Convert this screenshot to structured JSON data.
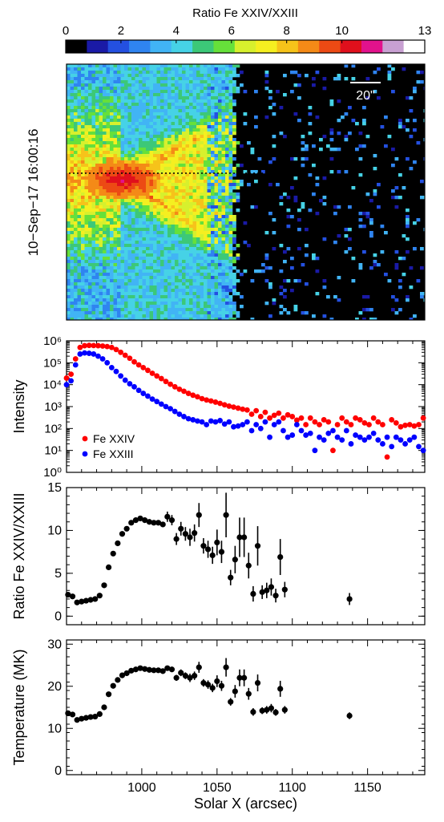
{
  "colorbar": {
    "title": "Ratio Fe XXIV/XXIII",
    "ticks": [
      "0",
      "2",
      "4",
      "6",
      "8",
      "10",
      "13"
    ],
    "tick_values": [
      0,
      2,
      4,
      6,
      8,
      10,
      13
    ],
    "range": [
      0,
      13
    ],
    "colors": [
      "#000000",
      "#1a1aa6",
      "#2450e0",
      "#2f84f0",
      "#41b4f5",
      "#46d2e6",
      "#3cc878",
      "#66e03a",
      "#d7f02d",
      "#f5ef20",
      "#f6c31a",
      "#f48a17",
      "#ec4a14",
      "#e0101c",
      "#e2128c",
      "#c8a0d2",
      "#ffffff"
    ]
  },
  "map": {
    "timestamp": "10−Sep−17 16:00:16",
    "scale_bar_label": "20\"",
    "colors": {
      "bg": "#000000",
      "line": "#000000"
    }
  },
  "chart_data": [
    {
      "type": "scatter",
      "ylabel": "Intensity",
      "yscale": "log",
      "ylim": [
        1,
        1000000
      ],
      "xlim": [
        950,
        1188
      ],
      "ytick_labels": [
        "10⁰",
        "10¹",
        "10²",
        "10³",
        "10⁴",
        "10⁵",
        "10⁶"
      ],
      "legend_position": "bottom-left",
      "series": [
        {
          "name": "Fe XXIV",
          "color": "#ff0000",
          "x": [
            950,
            953,
            956,
            959,
            962,
            965,
            968,
            971,
            974,
            977,
            980,
            983,
            986,
            989,
            992,
            995,
            998,
            1001,
            1004,
            1007,
            1010,
            1013,
            1016,
            1019,
            1022,
            1025,
            1028,
            1031,
            1034,
            1037,
            1040,
            1043,
            1046,
            1049,
            1052,
            1055,
            1058,
            1061,
            1064,
            1067,
            1070,
            1073,
            1076,
            1079,
            1082,
            1085,
            1088,
            1091,
            1094,
            1097,
            1100,
            1103,
            1106,
            1109,
            1112,
            1115,
            1118,
            1121,
            1124,
            1127,
            1130,
            1133,
            1136,
            1139,
            1142,
            1145,
            1148,
            1151,
            1154,
            1157,
            1160,
            1163,
            1166,
            1169,
            1172,
            1175,
            1178,
            1181,
            1184,
            1187
          ],
          "y": [
            20000,
            30000,
            150000,
            500000,
            600000,
            620000,
            610000,
            600000,
            580000,
            550000,
            500000,
            400000,
            300000,
            220000,
            160000,
            110000,
            80000,
            60000,
            45000,
            33000,
            25000,
            19000,
            14000,
            10500,
            8000,
            6200,
            5000,
            4000,
            3300,
            2800,
            2300,
            2000,
            1800,
            1600,
            1400,
            1200,
            1050,
            950,
            850,
            760,
            700,
            450,
            650,
            350,
            550,
            300,
            400,
            500,
            300,
            420,
            350,
            240,
            300,
            150,
            300,
            200,
            150,
            250,
            200,
            10,
            150,
            300,
            200,
            150,
            300,
            250,
            180,
            150,
            300,
            200,
            150,
            5,
            250,
            180,
            120,
            140,
            150,
            130,
            150,
            300
          ]
        },
        {
          "name": "Fe XXIII",
          "color": "#0000ff",
          "x": [
            950,
            953,
            956,
            959,
            962,
            965,
            968,
            971,
            974,
            977,
            980,
            983,
            986,
            989,
            992,
            995,
            998,
            1001,
            1004,
            1007,
            1010,
            1013,
            1016,
            1019,
            1022,
            1025,
            1028,
            1031,
            1034,
            1037,
            1040,
            1043,
            1046,
            1049,
            1052,
            1055,
            1058,
            1061,
            1064,
            1067,
            1070,
            1073,
            1076,
            1079,
            1082,
            1085,
            1088,
            1091,
            1094,
            1097,
            1100,
            1103,
            1106,
            1109,
            1112,
            1115,
            1118,
            1121,
            1124,
            1127,
            1130,
            1133,
            1136,
            1139,
            1142,
            1145,
            1148,
            1151,
            1154,
            1157,
            1160,
            1163,
            1166,
            1169,
            1172,
            1175,
            1178,
            1181,
            1184,
            1187
          ],
          "y": [
            10000,
            15000,
            80000,
            250000,
            280000,
            270000,
            250000,
            200000,
            150000,
            100000,
            60000,
            40000,
            25000,
            16000,
            11000,
            8000,
            5500,
            4000,
            3000,
            2200,
            1700,
            1300,
            1000,
            800,
            600,
            450,
            350,
            280,
            250,
            220,
            200,
            150,
            220,
            200,
            230,
            160,
            200,
            120,
            130,
            150,
            200,
            80,
            150,
            100,
            200,
            40,
            150,
            200,
            80,
            40,
            50,
            150,
            80,
            50,
            60,
            10,
            40,
            30,
            60,
            80,
            40,
            30,
            80,
            20,
            50,
            40,
            30,
            40,
            60,
            30,
            20,
            40,
            15,
            40,
            30,
            20,
            30,
            40,
            15,
            10
          ]
        }
      ]
    },
    {
      "type": "scatter",
      "ylabel": "Ratio Fe XXIV/XXIII",
      "ylim": [
        -1,
        15
      ],
      "xlim": [
        950,
        1188
      ],
      "ytick_values": [
        0,
        5,
        10,
        15
      ],
      "series": [
        {
          "name": "",
          "color": "#000000",
          "x": [
            951,
            954,
            957,
            960,
            963,
            966,
            969,
            972,
            975,
            978,
            981,
            984,
            987,
            990,
            993,
            996,
            999,
            1002,
            1005,
            1008,
            1011,
            1014,
            1017,
            1020,
            1023,
            1026,
            1029,
            1032,
            1035,
            1038,
            1041,
            1044,
            1047,
            1050,
            1053,
            1056,
            1059,
            1062,
            1065,
            1068,
            1071,
            1074,
            1077,
            1080,
            1083,
            1086,
            1089,
            1092,
            1095,
            1138
          ],
          "y": [
            2.5,
            2.3,
            1.6,
            1.7,
            1.8,
            1.9,
            2.0,
            2.4,
            3.6,
            5.7,
            7.3,
            8.5,
            9.6,
            10.2,
            10.9,
            11.2,
            11.4,
            11.2,
            11.0,
            10.9,
            10.9,
            10.7,
            11.6,
            11.2,
            9.0,
            10.2,
            9.6,
            9.2,
            9.7,
            11.8,
            8.2,
            7.8,
            7.1,
            8.6,
            7.5,
            11.8,
            4.5,
            6.6,
            9.2,
            9.2,
            5.9,
            2.6,
            8.2,
            2.8,
            3.0,
            3.4,
            2.4,
            6.9,
            3.1,
            2.0
          ],
          "err": [
            0.2,
            0.2,
            0.2,
            0.2,
            0.2,
            0.2,
            0.2,
            0.2,
            0.2,
            0.2,
            0.2,
            0.2,
            0.2,
            0.2,
            0.2,
            0.2,
            0.2,
            0.3,
            0.3,
            0.3,
            0.3,
            0.3,
            0.6,
            0.6,
            0.7,
            0.8,
            0.8,
            1.0,
            1.0,
            1.4,
            0.9,
            1.0,
            1.0,
            1.5,
            1.3,
            2.6,
            0.9,
            1.6,
            2.3,
            2.3,
            1.5,
            0.9,
            2.3,
            0.8,
            0.9,
            1.0,
            0.8,
            2.1,
            0.9,
            0.7
          ]
        }
      ]
    },
    {
      "type": "scatter",
      "ylabel": "Temperature (MK)",
      "xlabel": "Solar X (arcsec)",
      "ylim": [
        -1,
        31
      ],
      "xlim": [
        950,
        1188
      ],
      "ytick_values": [
        0,
        10,
        20,
        30
      ],
      "xtick_values": [
        1000,
        1050,
        1100,
        1150
      ],
      "series": [
        {
          "name": "",
          "color": "#000000",
          "x": [
            951,
            954,
            957,
            960,
            963,
            966,
            969,
            972,
            975,
            978,
            981,
            984,
            987,
            990,
            993,
            996,
            999,
            1002,
            1005,
            1008,
            1011,
            1014,
            1017,
            1020,
            1023,
            1026,
            1029,
            1032,
            1035,
            1038,
            1041,
            1044,
            1047,
            1050,
            1053,
            1056,
            1059,
            1062,
            1065,
            1068,
            1071,
            1074,
            1077,
            1080,
            1083,
            1086,
            1089,
            1092,
            1095,
            1138
          ],
          "y": [
            13.6,
            13.3,
            12.0,
            12.3,
            12.5,
            12.7,
            12.8,
            13.4,
            15.0,
            18.1,
            20.1,
            21.5,
            22.6,
            23.1,
            23.7,
            24.0,
            24.3,
            24.1,
            23.9,
            23.8,
            23.8,
            23.6,
            24.3,
            24.0,
            22.0,
            23.2,
            22.5,
            22.0,
            22.5,
            24.5,
            20.8,
            20.4,
            19.6,
            21.2,
            20.1,
            24.5,
            16.3,
            18.8,
            22.0,
            22.0,
            18.2,
            13.9,
            20.8,
            14.2,
            14.4,
            14.8,
            13.8,
            19.4,
            14.4,
            13.0
          ],
          "err": [
            0.3,
            0.3,
            0.3,
            0.3,
            0.3,
            0.3,
            0.3,
            0.3,
            0.3,
            0.3,
            0.3,
            0.3,
            0.3,
            0.3,
            0.3,
            0.3,
            0.3,
            0.4,
            0.4,
            0.4,
            0.4,
            0.4,
            0.6,
            0.6,
            0.7,
            0.8,
            0.8,
            1.0,
            1.0,
            1.3,
            0.9,
            1.0,
            1.0,
            1.4,
            1.2,
            2.2,
            0.9,
            1.5,
            2.0,
            2.0,
            1.4,
            0.9,
            2.0,
            0.8,
            0.9,
            1.0,
            0.8,
            1.9,
            0.9,
            0.8
          ]
        }
      ]
    }
  ]
}
